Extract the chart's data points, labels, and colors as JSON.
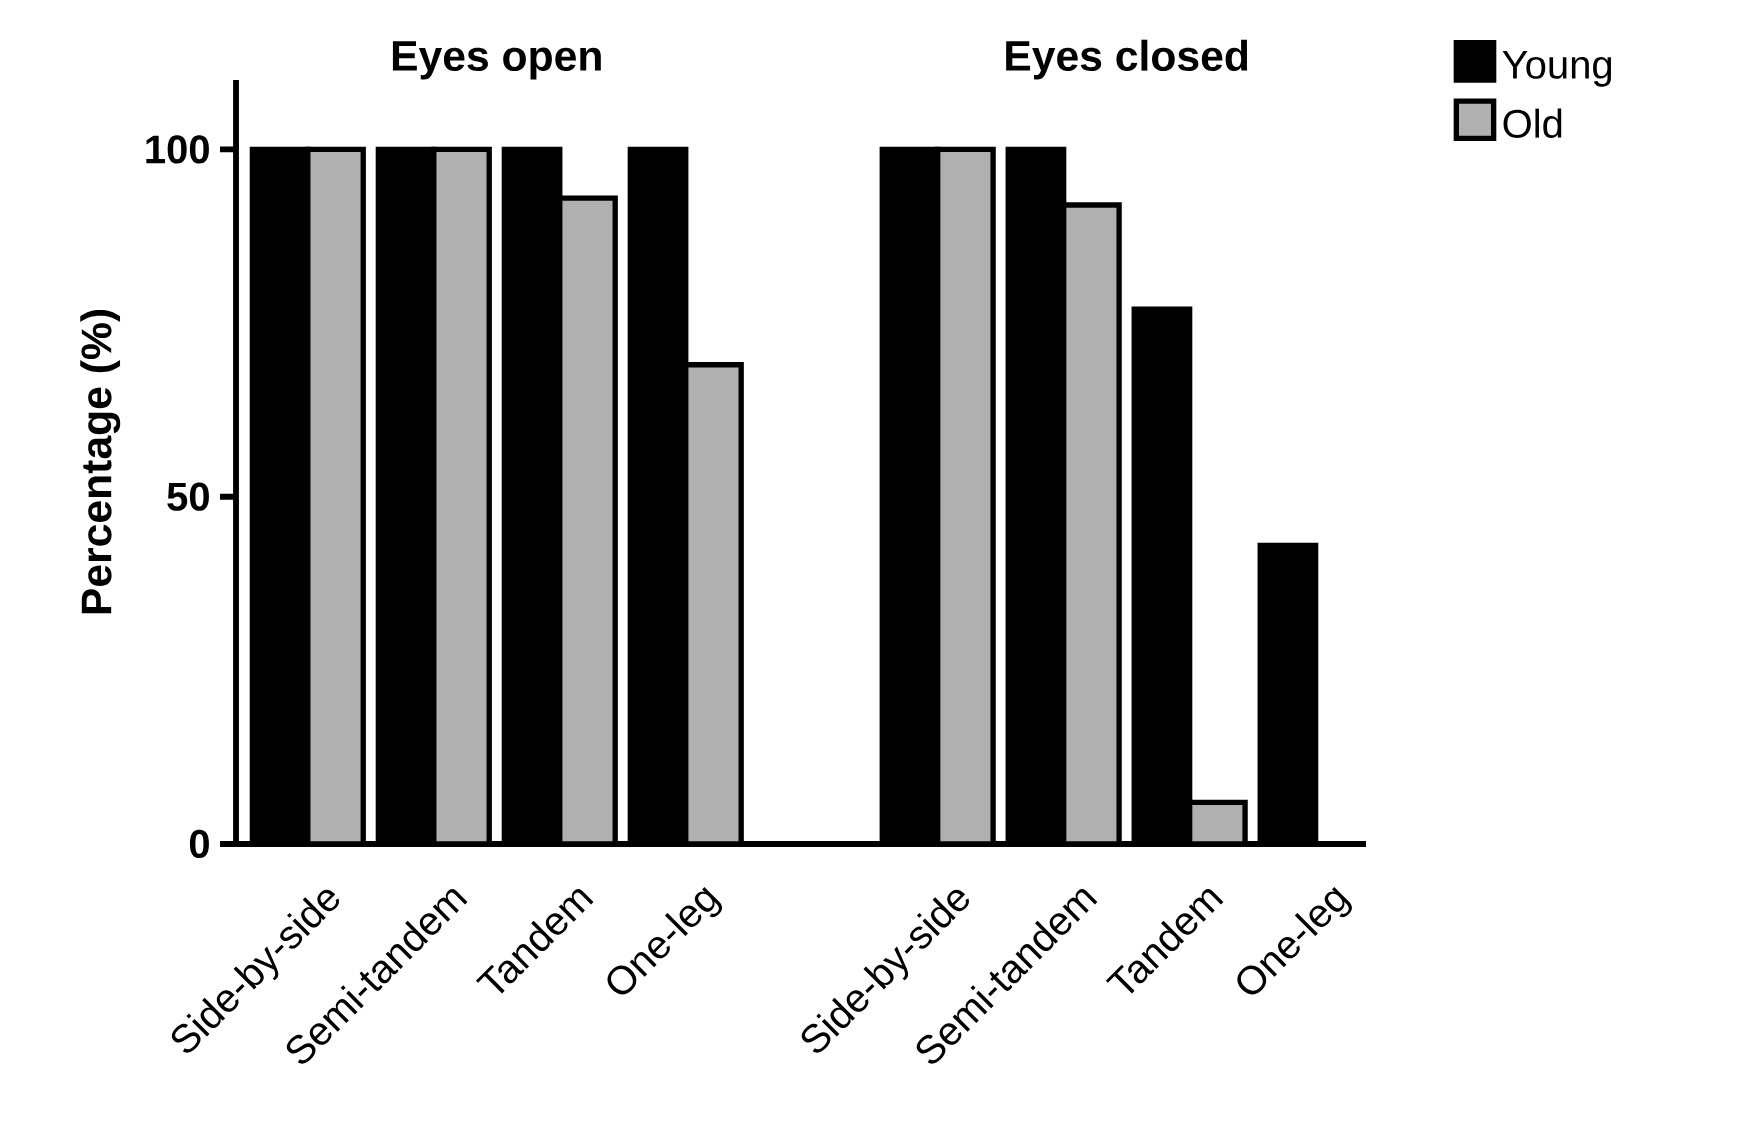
{
  "chart_data": {
    "type": "bar",
    "categories": [
      "Side-by-side",
      "Semi-tandem",
      "Tandem",
      "One-leg",
      null,
      "Side-by-side",
      "Semi-tandem",
      "Tandem",
      "One-leg"
    ],
    "series": [
      {
        "name": "Young",
        "color": "#000000",
        "values": [
          100,
          100,
          100,
          100,
          null,
          100,
          100,
          77,
          43
        ]
      },
      {
        "name": "Old",
        "color": "#b0b0b0",
        "values": [
          100,
          100,
          93,
          69,
          null,
          100,
          92,
          6,
          null
        ]
      }
    ],
    "ylabel": "Percentage (%)",
    "ylim": [
      0,
      110
    ],
    "yticks": [
      0,
      50,
      100
    ],
    "annotations": [
      "Eyes open",
      "Eyes closed"
    ],
    "grid": false,
    "legend": "top right"
  }
}
